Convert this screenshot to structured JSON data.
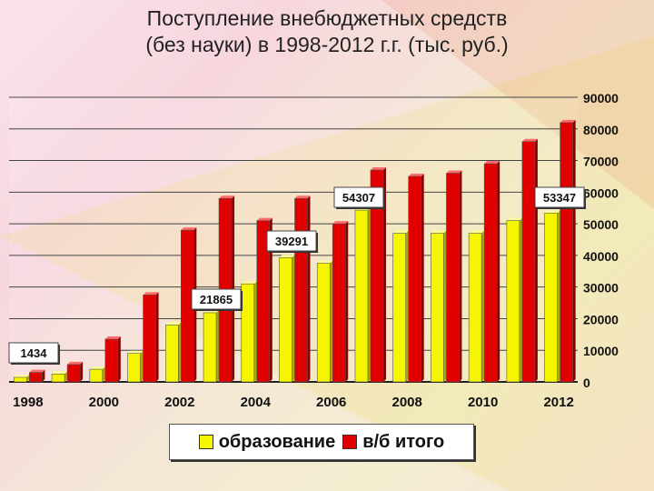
{
  "title_line1": "Поступление внебюджетных средств",
  "title_line2": "(без науки) в 1998-2012 г.г. (тыс. руб.)",
  "chart_data": {
    "type": "bar",
    "categories": [
      "1998",
      "1999",
      "2000",
      "2001",
      "2002",
      "2003",
      "2004",
      "2005",
      "2006",
      "2007",
      "2008",
      "2009",
      "2010",
      "2011",
      "2012"
    ],
    "x_tick_labels": [
      "1998",
      "2000",
      "2002",
      "2004",
      "2006",
      "2008",
      "2010",
      "2012"
    ],
    "series": [
      {
        "name": "образование",
        "color": "#f5f500",
        "values": [
          1434,
          2500,
          4000,
          9000,
          18000,
          21865,
          31000,
          39291,
          37500,
          54307,
          47000,
          47000,
          47000,
          51000,
          53347
        ]
      },
      {
        "name": "в/б итого",
        "color": "#e00000",
        "values": [
          3000,
          5500,
          13500,
          27500,
          48000,
          58000,
          51000,
          58000,
          50000,
          67000,
          65000,
          66000,
          69000,
          76000,
          82000
        ]
      }
    ],
    "ylim": [
      0,
      90000
    ],
    "y_ticks": [
      "0",
      "10000",
      "20000",
      "30000",
      "40000",
      "50000",
      "60000",
      "70000",
      "80000",
      "90000"
    ],
    "y_axis_side": "right",
    "grid": true,
    "legend_position": "bottom",
    "annotations": [
      {
        "text": "1434",
        "index": 0
      },
      {
        "text": "21865",
        "index": 5
      },
      {
        "text": "39291",
        "index": 7
      },
      {
        "text": "54307",
        "index": 9
      },
      {
        "text": "53347",
        "index": 14
      }
    ]
  }
}
